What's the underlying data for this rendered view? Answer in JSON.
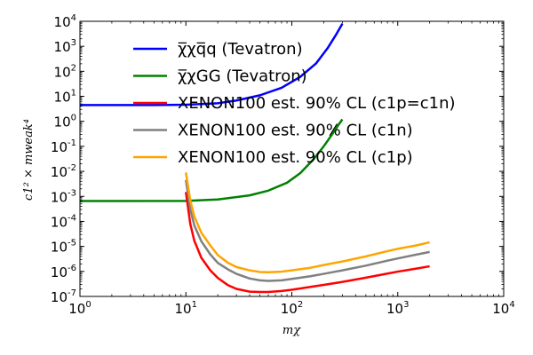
{
  "chart_data": {
    "type": "line",
    "title": "",
    "xlabel": "mχ",
    "ylabel": "c1² × mweak⁴",
    "xscale": "log",
    "yscale": "log",
    "xlim": [
      1,
      10000
    ],
    "ylim": [
      1e-07,
      10000
    ],
    "x_ticks": [
      {
        "base": "10",
        "exp": "0"
      },
      {
        "base": "10",
        "exp": "1"
      },
      {
        "base": "10",
        "exp": "2"
      },
      {
        "base": "10",
        "exp": "3"
      },
      {
        "base": "10",
        "exp": "4"
      }
    ],
    "y_ticks": [
      {
        "base": "10",
        "exp": "4"
      },
      {
        "base": "10",
        "exp": "3"
      },
      {
        "base": "10",
        "exp": "2"
      },
      {
        "base": "10",
        "exp": "1"
      },
      {
        "base": "10",
        "exp": "0"
      },
      {
        "base": "10",
        "exp": "-1"
      },
      {
        "base": "10",
        "exp": "-2"
      },
      {
        "base": "10",
        "exp": "-3"
      },
      {
        "base": "10",
        "exp": "-4"
      },
      {
        "base": "10",
        "exp": "-5"
      },
      {
        "base": "10",
        "exp": "-6"
      },
      {
        "base": "10",
        "exp": "-7"
      }
    ],
    "grid": false,
    "legend_position": "top-left",
    "series": [
      {
        "name": "χ̅χq̅q (Tevatron)",
        "color": "#0000ff",
        "x": [
          1,
          5,
          10,
          20,
          30,
          50,
          80,
          120,
          170,
          220,
          260,
          300
        ],
        "y": [
          4.5,
          4.5,
          4.6,
          5.3,
          6.8,
          11,
          22,
          60,
          210,
          900,
          2800,
          8000
        ]
      },
      {
        "name": "χ̅χGG (Tevatron)",
        "color": "#008000",
        "x": [
          1,
          10,
          20,
          40,
          60,
          90,
          120,
          160,
          200,
          240,
          280,
          300
        ],
        "y": [
          0.00065,
          0.00066,
          0.00075,
          0.0011,
          0.0017,
          0.0035,
          0.0085,
          0.03,
          0.1,
          0.3,
          0.8,
          1.2
        ]
      },
      {
        "name": "XENON100 est. 90% CL (c1p=c1n)",
        "color": "#ff0000",
        "x": [
          10,
          11,
          12,
          14,
          17,
          20,
          25,
          30,
          40,
          50,
          60,
          80,
          100,
          150,
          200,
          300,
          500,
          800,
          1000,
          1500,
          2000
        ],
        "y": [
          0.0015,
          8e-05,
          1.7e-05,
          3.5e-06,
          1.1e-06,
          5.5e-07,
          2.8e-07,
          2e-07,
          1.55e-07,
          1.5e-07,
          1.5e-07,
          1.65e-07,
          1.85e-07,
          2.4e-07,
          2.9e-07,
          3.8e-07,
          5.6e-07,
          8.2e-07,
          9.8e-07,
          1.3e-06,
          1.6e-06
        ]
      },
      {
        "name": "XENON100 est. 90% CL (c1n)",
        "color": "#808080",
        "x": [
          10,
          11,
          12,
          14,
          17,
          20,
          25,
          30,
          40,
          50,
          60,
          80,
          100,
          150,
          200,
          300,
          500,
          800,
          1000,
          1500,
          2000
        ],
        "y": [
          0.0045,
          0.0003,
          7e-05,
          1.6e-05,
          4.8e-06,
          2.2e-06,
          1.2e-06,
          8e-07,
          5.2e-07,
          4.4e-07,
          4.2e-07,
          4.4e-07,
          5e-07,
          6.4e-07,
          8e-07,
          1.1e-06,
          1.7e-06,
          2.7e-06,
          3.3e-06,
          4.7e-06,
          6e-06
        ]
      },
      {
        "name": "XENON100 est. 90% CL (c1p)",
        "color": "#ffa500",
        "x": [
          10,
          11,
          12,
          14,
          17,
          20,
          25,
          30,
          40,
          50,
          60,
          80,
          100,
          150,
          200,
          300,
          500,
          800,
          1000,
          1500,
          2000
        ],
        "y": [
          0.009,
          0.0007,
          0.00016,
          3.5e-05,
          1.1e-05,
          4.5e-06,
          2.2e-06,
          1.5e-06,
          1.1e-06,
          9.5e-07,
          9.3e-07,
          9.8e-07,
          1.1e-06,
          1.4e-06,
          1.8e-06,
          2.5e-06,
          4e-06,
          6.5e-06,
          8e-06,
          1.1e-05,
          1.45e-05
        ]
      }
    ]
  }
}
